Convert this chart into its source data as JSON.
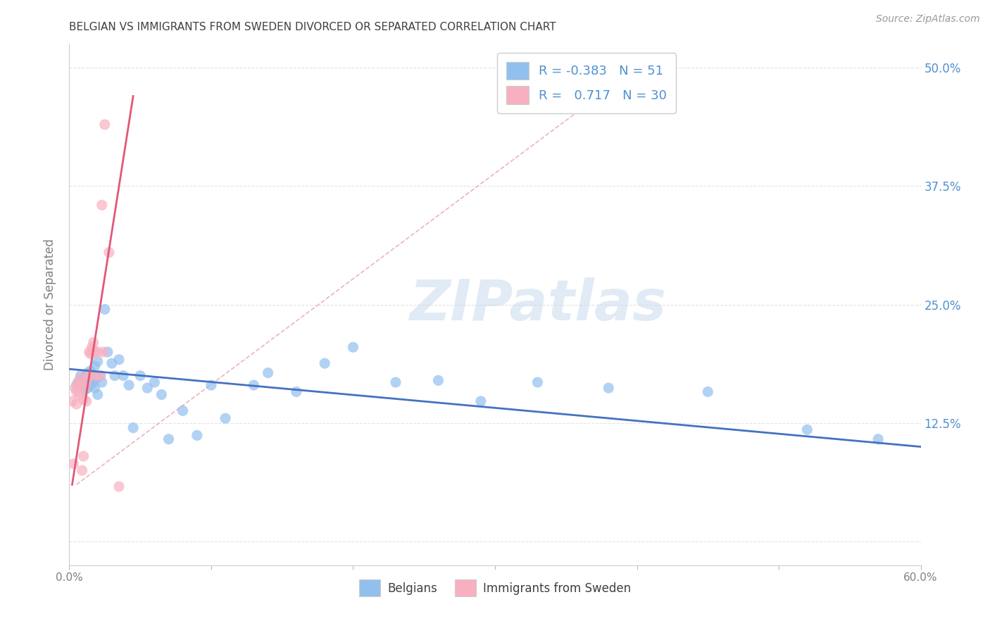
{
  "title": "BELGIAN VS IMMIGRANTS FROM SWEDEN DIVORCED OR SEPARATED CORRELATION CHART",
  "source": "Source: ZipAtlas.com",
  "ylabel": "Divorced or Separated",
  "watermark": "ZIPatlas",
  "xlim": [
    0.0,
    0.6
  ],
  "ylim": [
    -0.025,
    0.525
  ],
  "legend_blue_r": "-0.383",
  "legend_blue_n": "51",
  "legend_pink_r": "0.717",
  "legend_pink_n": "30",
  "blue_scatter_x": [
    0.005,
    0.007,
    0.008,
    0.009,
    0.01,
    0.011,
    0.012,
    0.013,
    0.013,
    0.014,
    0.015,
    0.015,
    0.016,
    0.017,
    0.018,
    0.018,
    0.019,
    0.02,
    0.02,
    0.022,
    0.023,
    0.025,
    0.027,
    0.03,
    0.032,
    0.035,
    0.038,
    0.042,
    0.045,
    0.05,
    0.055,
    0.06,
    0.065,
    0.07,
    0.08,
    0.09,
    0.1,
    0.11,
    0.13,
    0.14,
    0.16,
    0.18,
    0.2,
    0.23,
    0.26,
    0.29,
    0.33,
    0.38,
    0.45,
    0.52,
    0.57
  ],
  "blue_scatter_y": [
    0.165,
    0.17,
    0.175,
    0.168,
    0.172,
    0.16,
    0.175,
    0.178,
    0.162,
    0.17,
    0.18,
    0.165,
    0.175,
    0.168,
    0.185,
    0.162,
    0.172,
    0.19,
    0.155,
    0.175,
    0.168,
    0.245,
    0.2,
    0.188,
    0.175,
    0.192,
    0.175,
    0.165,
    0.12,
    0.175,
    0.162,
    0.168,
    0.155,
    0.108,
    0.138,
    0.112,
    0.165,
    0.13,
    0.165,
    0.178,
    0.158,
    0.188,
    0.205,
    0.168,
    0.17,
    0.148,
    0.168,
    0.162,
    0.158,
    0.118,
    0.108
  ],
  "pink_scatter_x": [
    0.002,
    0.003,
    0.004,
    0.005,
    0.005,
    0.006,
    0.007,
    0.007,
    0.008,
    0.009,
    0.01,
    0.01,
    0.011,
    0.012,
    0.012,
    0.013,
    0.014,
    0.015,
    0.015,
    0.016,
    0.017,
    0.018,
    0.019,
    0.02,
    0.022,
    0.023,
    0.024,
    0.025,
    0.028,
    0.035
  ],
  "pink_scatter_y": [
    0.148,
    0.082,
    0.162,
    0.158,
    0.145,
    0.168,
    0.165,
    0.155,
    0.172,
    0.075,
    0.15,
    0.09,
    0.162,
    0.168,
    0.148,
    0.175,
    0.2,
    0.198,
    0.175,
    0.205,
    0.21,
    0.2,
    0.175,
    0.2,
    0.175,
    0.355,
    0.2,
    0.44,
    0.305,
    0.058
  ],
  "blue_line_x": [
    0.0,
    0.6
  ],
  "blue_line_y": [
    0.182,
    0.1
  ],
  "pink_line_x": [
    0.002,
    0.045
  ],
  "pink_line_y": [
    0.06,
    0.47
  ],
  "dashed_line_x": [
    0.005,
    0.4
  ],
  "dashed_line_y": [
    0.06,
    0.5
  ],
  "blue_color": "#92C0EE",
  "pink_color": "#F8B0C0",
  "blue_line_color": "#4472C4",
  "pink_line_color": "#E05878",
  "dashed_line_color": "#E8A0B0",
  "bg_color": "#FFFFFF",
  "grid_color": "#DDDDDD",
  "title_color": "#404040",
  "axis_label_color": "#808080",
  "right_tick_color": "#5090D0",
  "source_color": "#999999"
}
